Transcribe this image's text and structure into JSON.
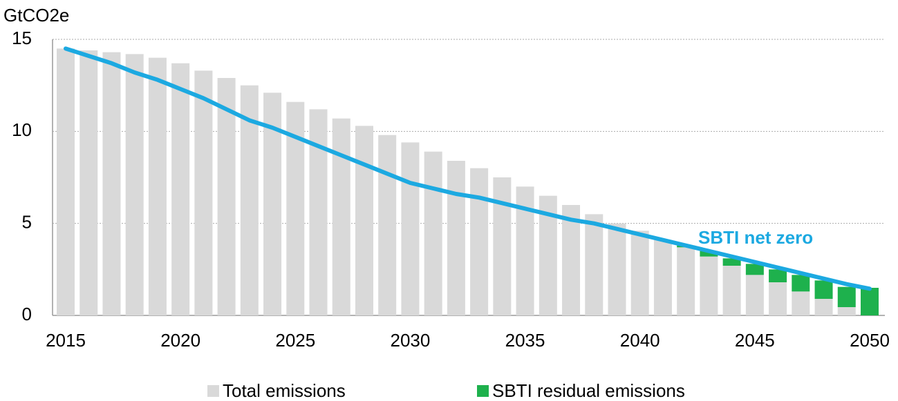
{
  "chart_data": {
    "type": "bar",
    "y_label": "GtCO2e",
    "x": [
      2015,
      2016,
      2017,
      2018,
      2019,
      2020,
      2021,
      2022,
      2023,
      2024,
      2025,
      2026,
      2027,
      2028,
      2029,
      2030,
      2031,
      2032,
      2033,
      2034,
      2035,
      2036,
      2037,
      2038,
      2039,
      2040,
      2041,
      2042,
      2043,
      2044,
      2045,
      2046,
      2047,
      2048,
      2049,
      2050
    ],
    "xticks": [
      2015,
      2020,
      2025,
      2030,
      2035,
      2040,
      2045,
      2050
    ],
    "ylim": [
      0,
      15
    ],
    "yticks": [
      0,
      5,
      10,
      15
    ],
    "grid": true,
    "stacked": true,
    "series": [
      {
        "name": "Total emissions",
        "color": "#d9d9d9",
        "type": "bar",
        "values": [
          14.5,
          14.4,
          14.3,
          14.2,
          14.0,
          13.7,
          13.3,
          12.9,
          12.5,
          12.1,
          11.6,
          11.2,
          10.7,
          10.3,
          9.8,
          9.4,
          8.9,
          8.4,
          8.0,
          7.5,
          7.0,
          6.5,
          6.0,
          5.5,
          5.0,
          4.6,
          4.1,
          3.7,
          3.2,
          2.7,
          2.2,
          1.8,
          1.3,
          0.9,
          0.45,
          0
        ]
      },
      {
        "name": "SBTI residual emissions",
        "color": "#1eb14d",
        "type": "bar",
        "values": [
          null,
          null,
          null,
          null,
          null,
          null,
          null,
          null,
          null,
          null,
          null,
          null,
          null,
          null,
          null,
          null,
          null,
          null,
          null,
          null,
          null,
          null,
          null,
          null,
          null,
          null,
          null,
          0.1,
          0.3,
          0.4,
          0.6,
          0.7,
          0.9,
          1.0,
          1.1,
          1.5
        ]
      },
      {
        "name": "SBTI net zero",
        "color": "#1ca9e1",
        "type": "line",
        "values": [
          14.5,
          14.1,
          13.7,
          13.2,
          12.8,
          12.3,
          11.8,
          11.2,
          10.6,
          10.2,
          9.7,
          9.2,
          8.7,
          8.2,
          7.7,
          7.2,
          6.9,
          6.6,
          6.4,
          6.1,
          5.8,
          5.5,
          5.2,
          5.0,
          4.7,
          4.4,
          4.1,
          3.8,
          3.5,
          3.2,
          2.9,
          2.6,
          2.3,
          2.0,
          1.7,
          1.45
        ]
      }
    ]
  }
}
